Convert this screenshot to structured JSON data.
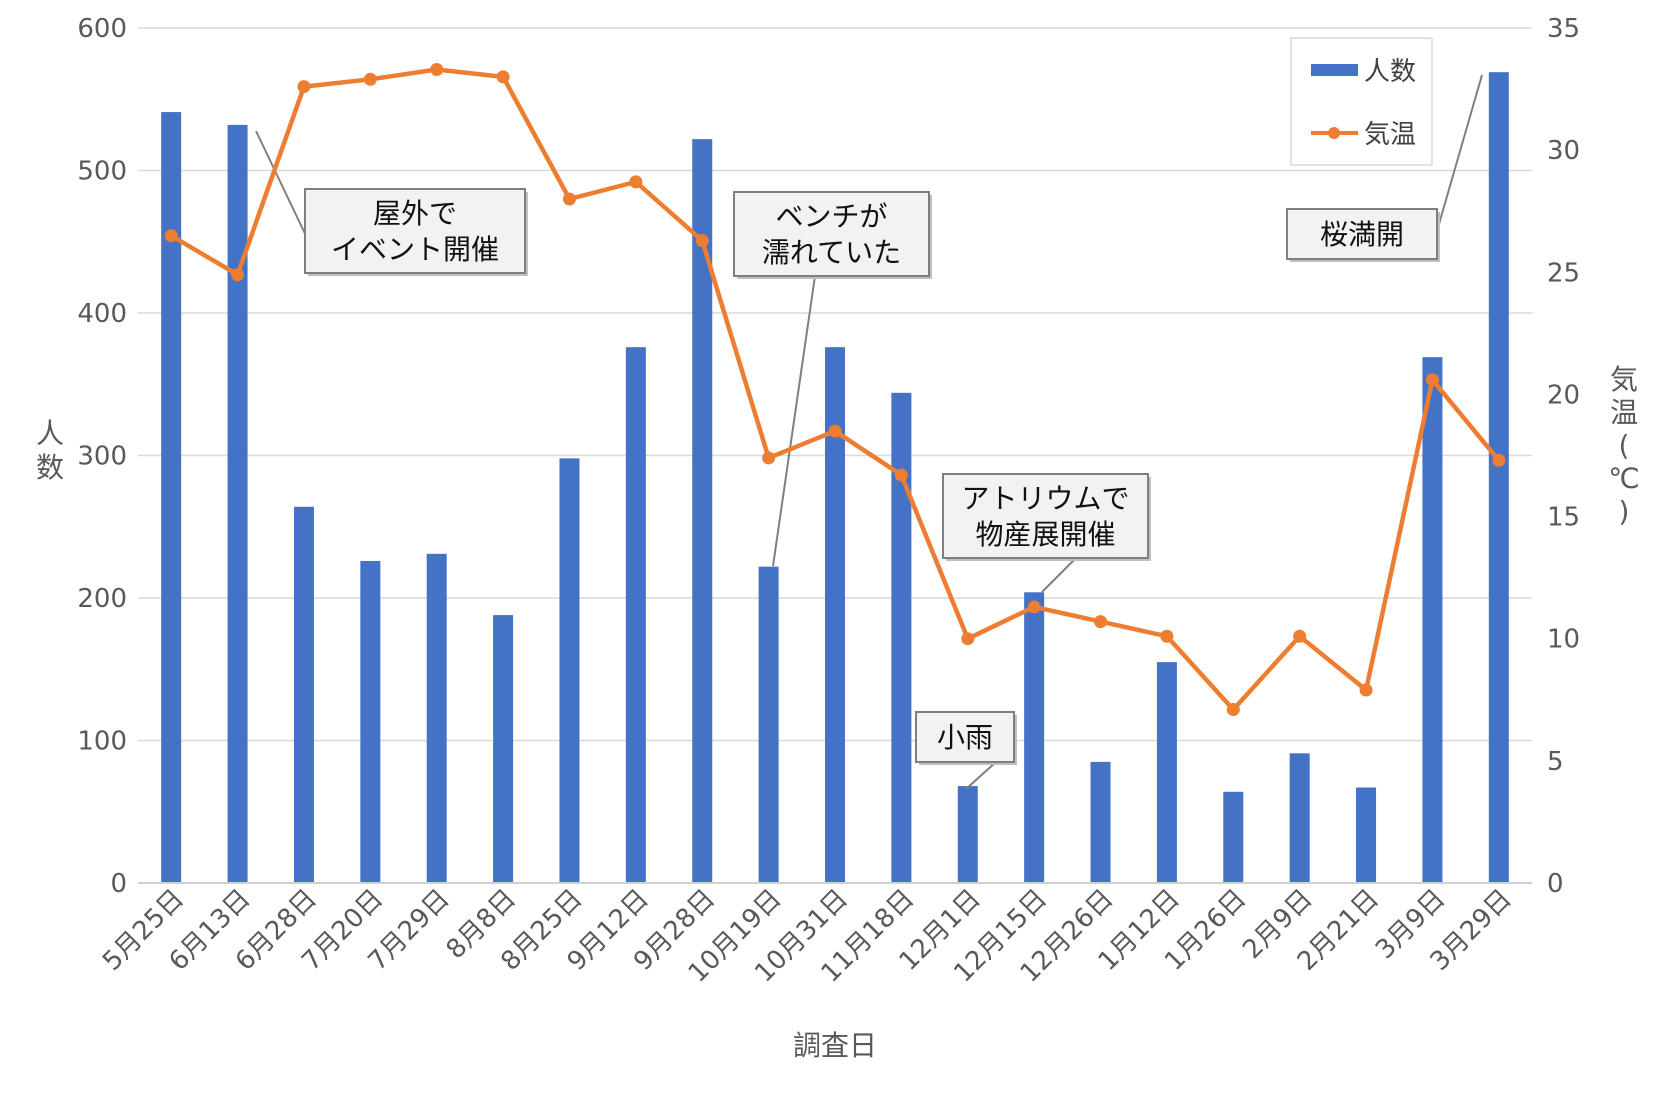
{
  "chart_data": {
    "type": "bar+line",
    "xlabel": "調査日",
    "ylabel_left": "人数",
    "ylabel_right": "気温(℃)",
    "ylim_left": [
      0,
      600
    ],
    "ylim_right": [
      0,
      35
    ],
    "yticks_left": [
      "0",
      "100",
      "200",
      "300",
      "400",
      "500",
      "600"
    ],
    "yticks_right": [
      "0",
      "5",
      "10",
      "15",
      "20",
      "25",
      "30",
      "35"
    ],
    "grid": true,
    "legend_position": "top-right",
    "categories": [
      "5月25日",
      "6月13日",
      "6月28日",
      "7月20日",
      "7月29日",
      "8月8日",
      "8月25日",
      "9月12日",
      "9月28日",
      "10月19日",
      "10月31日",
      "11月18日",
      "12月1日",
      "12月15日",
      "12月26日",
      "1月12日",
      "1月26日",
      "2月9日",
      "2月21日",
      "3月9日",
      "3月29日"
    ],
    "series": [
      {
        "name": "人数",
        "type": "bar",
        "axis": "left",
        "color": "#4472C4",
        "values": [
          541,
          532,
          264,
          226,
          231,
          188,
          298,
          376,
          522,
          222,
          376,
          344,
          68,
          204,
          85,
          155,
          64,
          91,
          67,
          369,
          569
        ]
      },
      {
        "name": "気温",
        "type": "line",
        "axis": "right",
        "color": "#ED7D31",
        "values": [
          26.5,
          24.9,
          32.6,
          32.9,
          33.3,
          33.0,
          28.0,
          28.7,
          26.3,
          17.4,
          18.5,
          16.7,
          10.0,
          11.3,
          10.7,
          10.1,
          7.1,
          10.1,
          7.9,
          20.6,
          17.3
        ]
      }
    ],
    "annotations": [
      {
        "lines": [
          "屋外で",
          "イベント開催"
        ],
        "category": "6月13日"
      },
      {
        "lines": [
          "ベンチが",
          "濡れていた"
        ],
        "category": "10月19日"
      },
      {
        "lines": [
          "桜満開"
        ],
        "category": "3月29日"
      },
      {
        "lines": [
          "アトリウムで",
          "物産展開催"
        ],
        "category": "12月15日"
      },
      {
        "lines": [
          "小雨"
        ],
        "category": "12月1日"
      }
    ]
  }
}
